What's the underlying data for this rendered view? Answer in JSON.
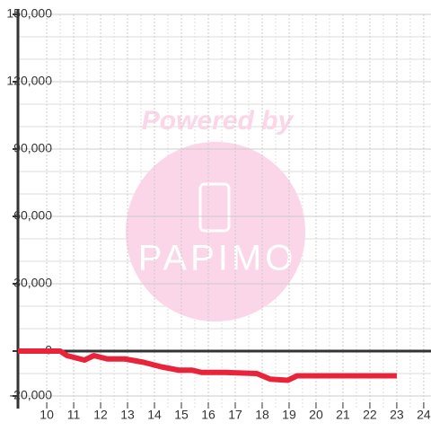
{
  "chart_data": {
    "type": "line",
    "watermark": "Powered by",
    "watermark_logo": "PAPIMO",
    "x": [
      8.93,
      10.5,
      10.75,
      11.4,
      11.75,
      12.25,
      12.9,
      13.6,
      14.25,
      14.9,
      15.4,
      15.75,
      16.6,
      17.8,
      18.0,
      18.3,
      18.95,
      19.3,
      19.8,
      23.0
    ],
    "series": [
      {
        "color": "#e8233a",
        "values": [
          0,
          0,
          -2000,
          -4000,
          -2000,
          -3500,
          -3500,
          -5000,
          -7000,
          -8500,
          -8500,
          -9500,
          -9500,
          -10000,
          -11000,
          -12500,
          -13000,
          -11000,
          -11000,
          -11000
        ]
      }
    ],
    "xlim": [
      8.93,
      24.27
    ],
    "xticks": [
      10,
      11,
      12,
      13,
      14,
      15,
      16,
      17,
      18,
      19,
      20,
      21,
      22,
      23,
      24
    ],
    "ylim": [
      -20000,
      150000
    ],
    "yticks": [
      {
        "value": -20000,
        "label": "-20,000"
      },
      0,
      {
        "value": 30000,
        "label": "30,000"
      },
      {
        "value": 60000,
        "label": "60,000"
      },
      {
        "value": 90000,
        "label": "90,000"
      },
      {
        "value": 120000,
        "label": "120,000"
      },
      {
        "value": 150000,
        "label": "150,000"
      }
    ],
    "grid": true
  }
}
